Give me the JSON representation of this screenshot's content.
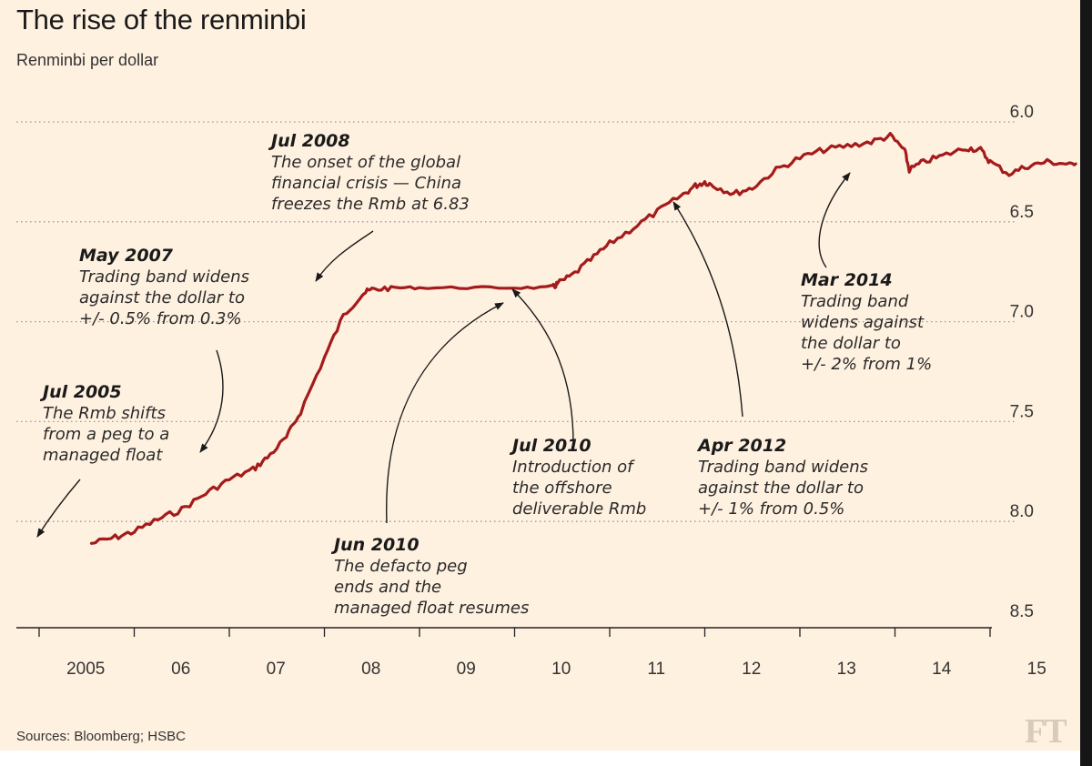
{
  "header": {
    "title": "The rise of the renminbi",
    "subtitle": "Renminbi per dollar"
  },
  "footer": {
    "source": "Sources: Bloomberg; HSBC",
    "logo": "FT"
  },
  "colors": {
    "background": "#fff1e0",
    "line": "#a31b1b",
    "grid": "#999999"
  },
  "chart_data": {
    "type": "line",
    "title": "The rise of the renminbi",
    "ylabel": "Renminbi per dollar",
    "ylim": [
      6.0,
      8.5
    ],
    "y_inverted": true,
    "yticks": [
      "6.0",
      "6.5",
      "7.0",
      "7.5",
      "8.0",
      "8.5"
    ],
    "xticks": [
      "2005",
      "06",
      "07",
      "08",
      "09",
      "10",
      "11",
      "12",
      "13",
      "14",
      "15"
    ],
    "x_start_year": 2005,
    "x_end_year": 2016,
    "grid": "horizontal dotted",
    "series": [
      {
        "x": [
          2005.55,
          2005.8,
          2006.0,
          2006.25,
          2006.5,
          2006.75,
          2007.0,
          2007.25,
          2007.4,
          2007.6,
          2007.75,
          2008.0,
          2008.2,
          2008.4,
          2008.5,
          2008.7,
          2009.0,
          2009.5,
          2010.0,
          2010.4,
          2010.45,
          2010.6,
          2010.8,
          2011.0,
          2011.25,
          2011.5,
          2011.75,
          2011.9,
          2012.0,
          2012.1,
          2012.3,
          2012.5,
          2012.75,
          2013.0,
          2013.25,
          2013.5,
          2013.75,
          2013.95,
          2014.1,
          2014.15,
          2014.3,
          2014.5,
          2014.75,
          2014.9,
          2015.0,
          2015.2,
          2015.4,
          2015.6,
          2015.8,
          2015.9
        ],
        "y": [
          8.11,
          8.08,
          8.05,
          7.99,
          7.94,
          7.86,
          7.79,
          7.74,
          7.68,
          7.58,
          7.45,
          7.18,
          6.97,
          6.86,
          6.84,
          6.83,
          6.83,
          6.83,
          6.83,
          6.83,
          6.81,
          6.77,
          6.69,
          6.61,
          6.53,
          6.45,
          6.37,
          6.32,
          6.3,
          6.32,
          6.36,
          6.33,
          6.24,
          6.18,
          6.14,
          6.12,
          6.1,
          6.07,
          6.14,
          6.24,
          6.2,
          6.17,
          6.13,
          6.14,
          6.2,
          6.26,
          6.22,
          6.2,
          6.21,
          6.21
        ]
      }
    ],
    "annotations": [
      {
        "title": "Jul 2005",
        "lines": [
          "The Rmb shifts",
          "from a peg to a",
          "managed float"
        ]
      },
      {
        "title": "May 2007",
        "lines": [
          "Trading band widens",
          "against the dollar to",
          "+/- 0.5% from 0.3%"
        ]
      },
      {
        "title": "Jul 2008",
        "lines": [
          "The onset of the global",
          "financial crisis — China",
          "freezes the Rmb at 6.83"
        ]
      },
      {
        "title": "Jun 2010",
        "lines": [
          "The defacto peg",
          "ends and the",
          "managed float resumes"
        ]
      },
      {
        "title": "Jul 2010",
        "lines": [
          "Introduction of",
          "the offshore",
          "deliverable Rmb"
        ]
      },
      {
        "title": "Apr 2012",
        "lines": [
          "Trading band widens",
          "against the dollar to",
          "+/- 1% from 0.5%"
        ]
      },
      {
        "title": "Mar 2014",
        "lines": [
          "Trading band",
          "widens against",
          "the dollar to",
          "+/- 2% from 1%"
        ]
      }
    ]
  }
}
